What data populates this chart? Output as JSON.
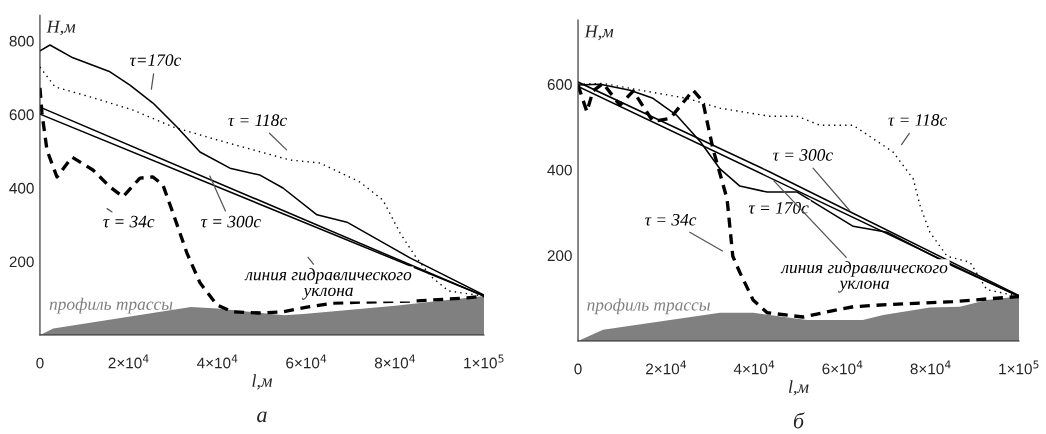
{
  "chart_data": [
    {
      "type": "line",
      "title": "а",
      "xlabel": "l,м",
      "ylabel": "H,м",
      "xlim": [
        0,
        100000
      ],
      "ylim": [
        0,
        870
      ],
      "xticks": [
        0,
        {
          "value": 20000,
          "label": "2×10$^{4}$"
        },
        {
          "value": 40000,
          "label": "4×10$^{4}$"
        },
        {
          "value": 60000,
          "label": "6×10$^{4}$"
        },
        {
          "value": 80000,
          "label": "8×10$^{4}$"
        },
        {
          "value": 100000,
          "label": "1×10$^{5}$"
        }
      ],
      "yticks": [
        200,
        400,
        600,
        800
      ],
      "series": [
        {
          "name": "профиль трассы",
          "type": "area",
          "color": "#808080",
          "x": [
            0,
            3000,
            34000,
            40000,
            55000,
            60000,
            80000,
            100000
          ],
          "values": [
            0,
            18,
            76,
            72,
            54,
            58,
            80,
            106
          ]
        },
        {
          "name": "τ=170c",
          "color": "#000000",
          "line_style": "solid",
          "x": [
            0,
            2250,
            7430,
            15770,
            20270,
            25450,
            30860,
            36040,
            42790,
            49550,
            54730,
            62390,
            69140,
            75000,
            83330,
            100000
          ],
          "values": [
            773,
            789,
            754,
            716,
            680,
            631,
            566,
            498,
            454,
            435,
            400,
            327,
            307,
            267,
            210,
            109
          ]
        },
        {
          "name": "τ = 118c",
          "color": "#000000",
          "line_style": "dotted",
          "x": [
            0,
            3380,
            11260,
            20950,
            29950,
            39860,
            56300,
            63060,
            72070,
            77250,
            81080,
            84500,
            88000,
            92000,
            100000
          ],
          "values": [
            729,
            675,
            648,
            612,
            566,
            531,
            476,
            468,
            416,
            367,
            278,
            215,
            160,
            120,
            106
          ]
        },
        {
          "name": "τ = 34c",
          "color": "#000000",
          "line_style": "dashed",
          "x": [
            0,
            450,
            1580,
            3830,
            7210,
            11940,
            15770,
            18690,
            22520,
            25450,
            27700,
            29950,
            33100,
            36040,
            39860,
            43470,
            49550,
            54730,
            60140,
            65990,
            73650,
            84910,
            96170,
            100000
          ],
          "values": [
            672,
            604,
            503,
            430,
            484,
            449,
            403,
            376,
            427,
            430,
            408,
            332,
            223,
            142,
            82,
            63,
            60,
            63,
            76,
            87,
            90,
            93,
            101,
            106
          ]
        },
        {
          "name": "τ = 300c",
          "color": "#000000",
          "line_style": "solid",
          "x": [
            0,
            100000
          ],
          "values": [
            620,
            106
          ]
        },
        {
          "name": "линия гидравлического уклона",
          "color": "#000000",
          "line_style": "solid",
          "x": [
            0,
            100000
          ],
          "values": [
            601,
            106
          ]
        }
      ]
    },
    {
      "type": "line",
      "title": "б",
      "xlabel": "l,м",
      "ylabel": "H,м",
      "xlim": [
        0,
        100000
      ],
      "ylim": [
        0,
        750
      ],
      "xticks": [
        0,
        {
          "value": 20000,
          "label": "2×10$^{4}$"
        },
        {
          "value": 40000,
          "label": "4×10$^{4}$"
        },
        {
          "value": 60000,
          "label": "6×10$^{4}$"
        },
        {
          "value": 80000,
          "label": "8×10$^{4}$"
        },
        {
          "value": 100000,
          "label": "1×10$^{5}$"
        }
      ],
      "yticks": [
        200,
        400,
        600
      ],
      "series": [
        {
          "name": "профиль трассы",
          "type": "area",
          "color": "#808080",
          "x": [
            0,
            5670,
            32200,
            39700,
            51900,
            64600,
            69200,
            79800,
            86600,
            92700,
            100000
          ],
          "values": [
            0,
            26,
            66,
            66,
            49,
            49,
            61,
            78,
            80,
            96,
            104
          ]
        },
        {
          "name": "τ = 118c",
          "color": "#000000",
          "line_style": "dotted",
          "x": [
            0,
            5700,
            14100,
            24700,
            32200,
            43500,
            49700,
            54900,
            62400,
            71400,
            76000,
            77600,
            79800,
            83700,
            88900,
            92700,
            100000
          ],
          "values": [
            600,
            602,
            586,
            567,
            544,
            525,
            525,
            504,
            504,
            442,
            379,
            315,
            254,
            198,
            184,
            120,
            104
          ]
        },
        {
          "name": "τ = 300c",
          "color": "#000000",
          "line_style": "solid",
          "x": [
            0,
            43500,
            100000
          ],
          "values": [
            605,
            395,
            106
          ]
        },
        {
          "name": "τ = 170c",
          "color": "#000000",
          "line_style": "solid",
          "x": [
            0,
            5000,
            11800,
            17000,
            22400,
            27700,
            32200,
            36700,
            42900,
            49700,
            62400,
            70100,
            85000,
            100000
          ],
          "values": [
            598,
            600,
            586,
            567,
            527,
            466,
            402,
            362,
            348,
            348,
            268,
            254,
            175,
            104
          ]
        },
        {
          "name": "τ = 34c",
          "color": "#000000",
          "line_style": "dashed",
          "x": [
            0,
            2000,
            3400,
            5700,
            9500,
            12500,
            17000,
            20900,
            26100,
            28300,
            30600,
            33800,
            35100,
            36700,
            39700,
            42900,
            51000,
            58700,
            62400,
            70100,
            85000,
            100000
          ],
          "values": [
            598,
            536,
            584,
            602,
            551,
            584,
            513,
            520,
            586,
            560,
            449,
            332,
            198,
            160,
            96,
            66,
            56,
            73,
            80,
            85,
            92,
            104
          ]
        },
        {
          "name": "линия гидравлического уклона",
          "color": "#000000",
          "line_style": "solid",
          "x": [
            0,
            100000
          ],
          "values": [
            595,
            104
          ]
        }
      ]
    }
  ]
}
